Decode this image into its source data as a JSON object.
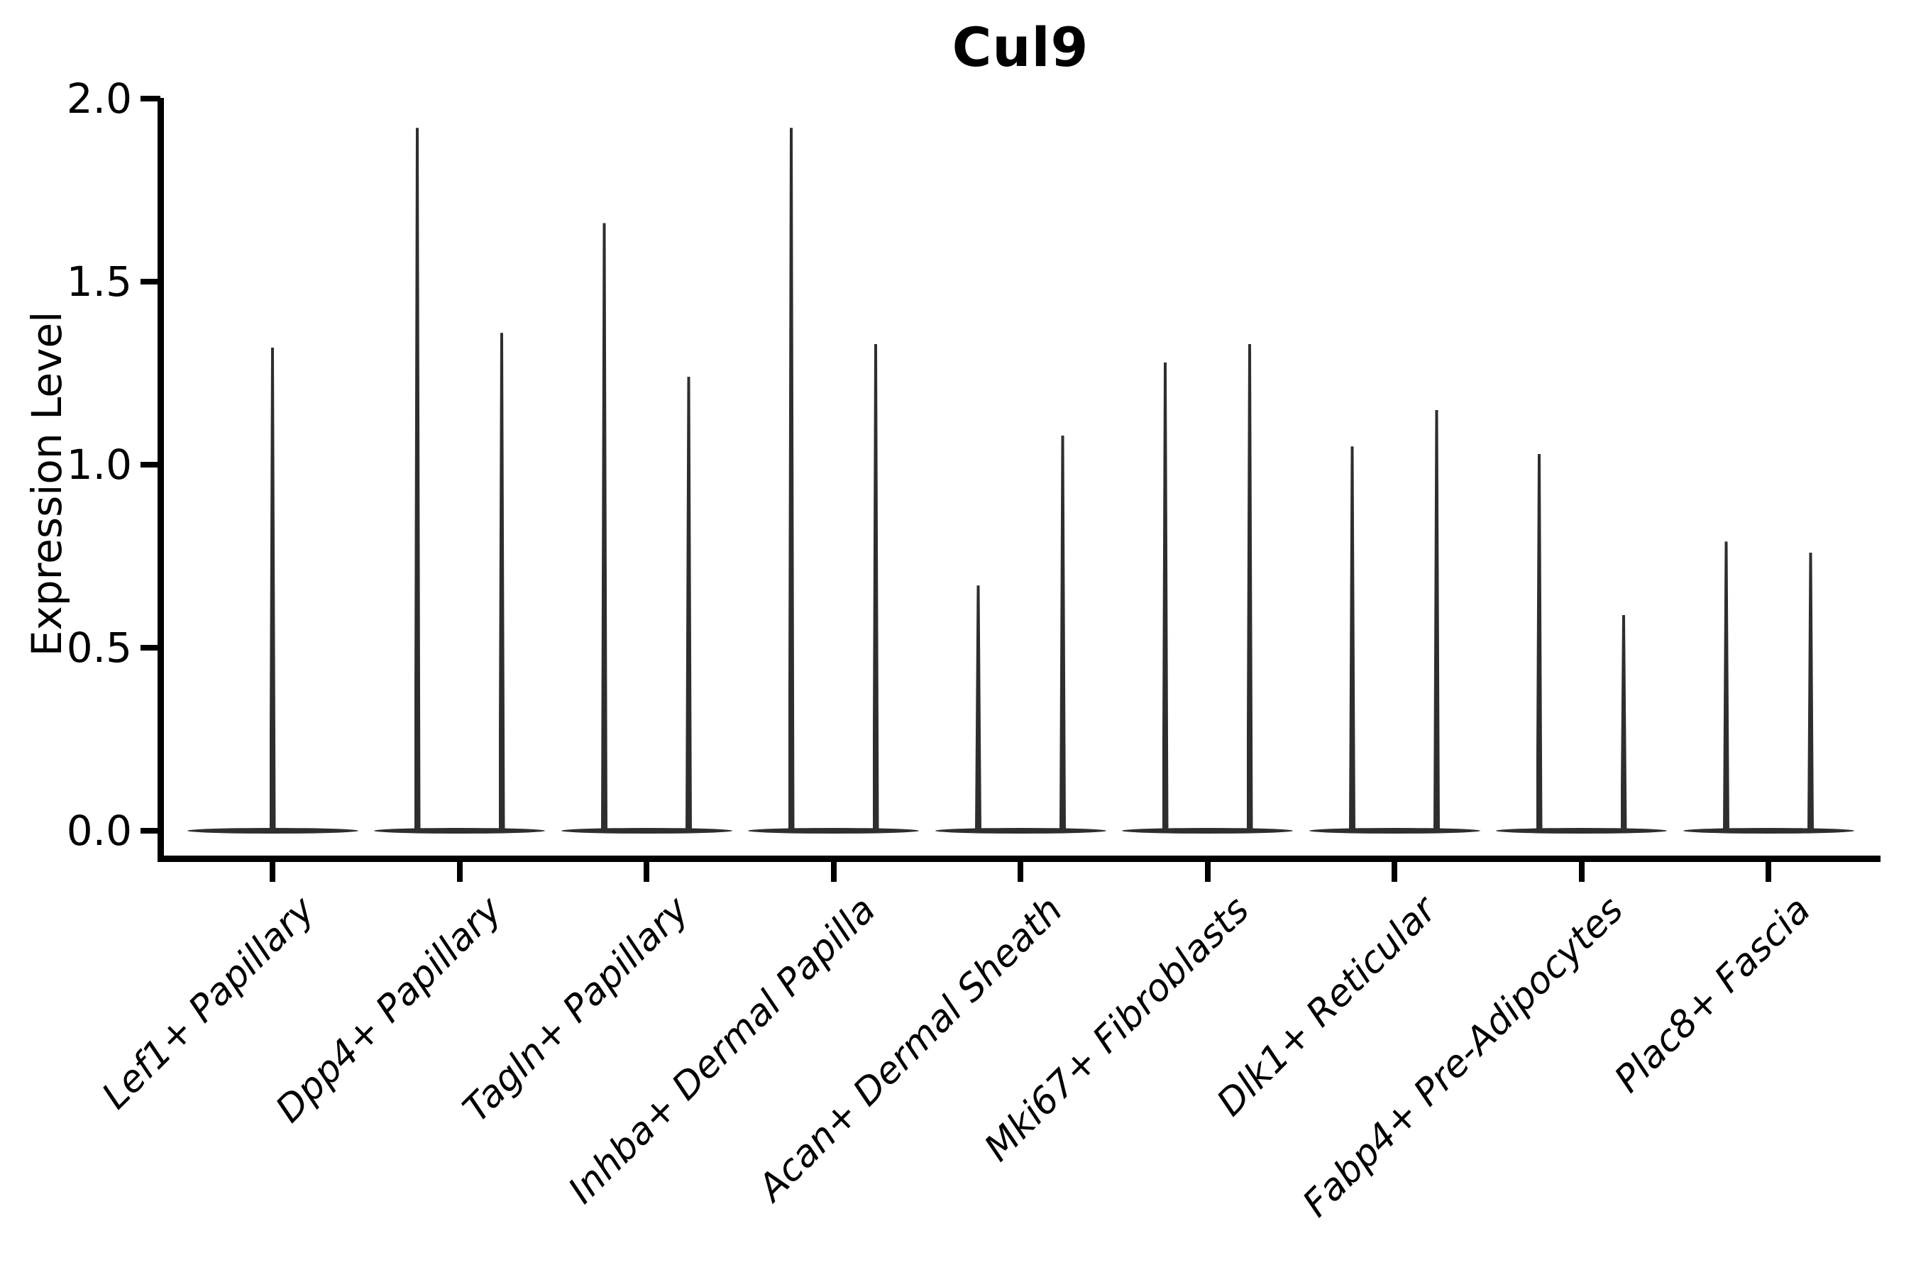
{
  "title": "Cul9",
  "ylabel": "Expression Level",
  "ink_color": "#2e2e2e",
  "background_color": "#ffffff",
  "chart_data": {
    "type": "violin",
    "title": "Cul9",
    "xlabel": "",
    "ylabel": "Expression Level",
    "ylim": [
      0.0,
      2.0
    ],
    "yticks": [
      0.0,
      0.5,
      1.0,
      1.5,
      2.0
    ],
    "ytick_labels": [
      "0.0",
      "0.5",
      "1.0",
      "1.5",
      "2.0"
    ],
    "grid": false,
    "legend": "none",
    "description": "Violin plot of Cul9 expression; expression is near zero for most cells so each violin collapses to a wide flat base at 0 with a thin spike up to the maximum value. The first category has a single full-width violin; all other categories contain two side-by-side violins.",
    "categories": [
      "Lef1+ Papillary",
      "Dpp4+ Papillary",
      "Tagln+ Papillary",
      "Inhba+ Dermal Papilla",
      "Acan+ Dermal Sheath",
      "Mki67+ Fibroblasts",
      "Dlk1+ Reticular",
      "Fabp4+ Pre-Adipocytes",
      "Plac8+ Fascia"
    ],
    "violins": [
      {
        "category": "Lef1+ Papillary",
        "max_values": [
          1.32
        ]
      },
      {
        "category": "Dpp4+ Papillary",
        "max_values": [
          1.92,
          1.36
        ]
      },
      {
        "category": "Tagln+ Papillary",
        "max_values": [
          1.66,
          1.24
        ]
      },
      {
        "category": "Inhba+ Dermal Papilla",
        "max_values": [
          1.92,
          1.33
        ]
      },
      {
        "category": "Acan+ Dermal Sheath",
        "max_values": [
          0.67,
          1.08
        ]
      },
      {
        "category": "Mki67+ Fibroblasts",
        "max_values": [
          1.28,
          1.33
        ]
      },
      {
        "category": "Dlk1+ Reticular",
        "max_values": [
          1.05,
          1.15
        ]
      },
      {
        "category": "Fabp4+ Pre-Adipocytes",
        "max_values": [
          1.03,
          0.59
        ]
      },
      {
        "category": "Plac8+ Fascia",
        "max_values": [
          0.79,
          0.76
        ]
      }
    ]
  }
}
